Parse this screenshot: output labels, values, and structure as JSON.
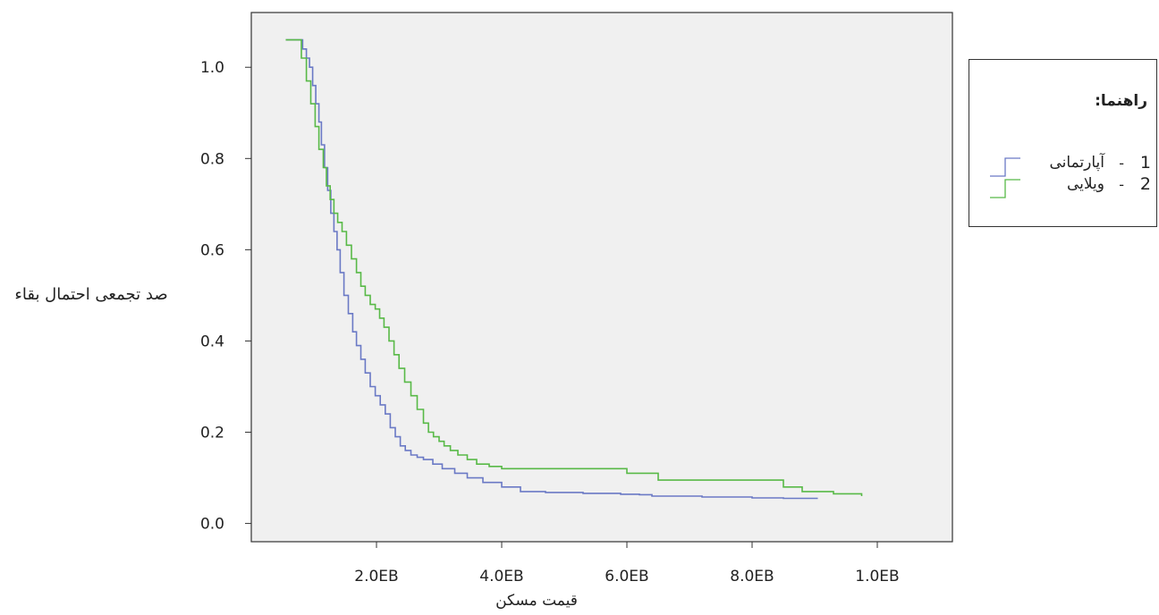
{
  "chart_data": {
    "type": "line",
    "step": true,
    "xlabel": "قیمت مسکن",
    "ylabel": "صد تجمعی احتمال بقاء",
    "xlim": [
      0.0,
      1.12
    ],
    "ylim": [
      -0.04,
      1.12
    ],
    "x_ticks": [
      {
        "value": 0.2,
        "label": "2.0EB"
      },
      {
        "value": 0.4,
        "label": "4.0EB"
      },
      {
        "value": 0.6,
        "label": "6.0EB"
      },
      {
        "value": 0.8,
        "label": "8.0EB"
      },
      {
        "value": 1.0,
        "label": "1.0EB"
      }
    ],
    "y_ticks": [
      {
        "value": 0.0,
        "label": "0.0"
      },
      {
        "value": 0.2,
        "label": "0.2"
      },
      {
        "value": 0.4,
        "label": "0.4"
      },
      {
        "value": 0.6,
        "label": "0.6"
      },
      {
        "value": 0.8,
        "label": "0.8"
      },
      {
        "value": 1.0,
        "label": "1.0"
      }
    ],
    "grid": false,
    "legend_position": "right",
    "series": [
      {
        "name": "آپارتمانی",
        "color": "#6a79c5",
        "x": [
          0.055,
          0.075,
          0.082,
          0.088,
          0.093,
          0.098,
          0.103,
          0.108,
          0.112,
          0.117,
          0.122,
          0.127,
          0.132,
          0.137,
          0.142,
          0.148,
          0.155,
          0.162,
          0.168,
          0.175,
          0.182,
          0.19,
          0.198,
          0.206,
          0.214,
          0.222,
          0.23,
          0.238,
          0.246,
          0.255,
          0.265,
          0.275,
          0.29,
          0.305,
          0.325,
          0.345,
          0.37,
          0.4,
          0.43,
          0.47,
          0.53,
          0.59,
          0.62,
          0.64,
          0.72,
          0.8,
          0.85,
          0.905
        ],
        "y": [
          1.06,
          1.06,
          1.04,
          1.02,
          1.0,
          0.96,
          0.92,
          0.88,
          0.83,
          0.78,
          0.73,
          0.68,
          0.64,
          0.6,
          0.55,
          0.5,
          0.46,
          0.42,
          0.39,
          0.36,
          0.33,
          0.3,
          0.28,
          0.26,
          0.24,
          0.21,
          0.19,
          0.17,
          0.16,
          0.15,
          0.145,
          0.14,
          0.13,
          0.12,
          0.11,
          0.1,
          0.09,
          0.08,
          0.07,
          0.068,
          0.066,
          0.064,
          0.063,
          0.06,
          0.058,
          0.056,
          0.055,
          0.055
        ]
      },
      {
        "name": "ویلایی",
        "color": "#58b947",
        "x": [
          0.055,
          0.072,
          0.08,
          0.088,
          0.095,
          0.102,
          0.108,
          0.115,
          0.12,
          0.126,
          0.132,
          0.138,
          0.145,
          0.152,
          0.16,
          0.168,
          0.175,
          0.182,
          0.19,
          0.198,
          0.205,
          0.212,
          0.22,
          0.228,
          0.236,
          0.245,
          0.255,
          0.265,
          0.275,
          0.283,
          0.291,
          0.3,
          0.308,
          0.318,
          0.33,
          0.345,
          0.36,
          0.38,
          0.4,
          0.45,
          0.5,
          0.55,
          0.6,
          0.65,
          0.7,
          0.75,
          0.8,
          0.85,
          0.88,
          0.93,
          0.975
        ],
        "y": [
          1.06,
          1.06,
          1.02,
          0.97,
          0.92,
          0.87,
          0.82,
          0.78,
          0.74,
          0.71,
          0.68,
          0.66,
          0.64,
          0.61,
          0.58,
          0.55,
          0.52,
          0.5,
          0.48,
          0.47,
          0.45,
          0.43,
          0.4,
          0.37,
          0.34,
          0.31,
          0.28,
          0.25,
          0.22,
          0.2,
          0.19,
          0.18,
          0.17,
          0.16,
          0.15,
          0.14,
          0.13,
          0.125,
          0.12,
          0.12,
          0.12,
          0.12,
          0.11,
          0.095,
          0.095,
          0.095,
          0.095,
          0.08,
          0.07,
          0.065,
          0.06
        ]
      }
    ]
  },
  "legend": {
    "title": "راهنما:",
    "items": [
      {
        "number": "1",
        "label": "آپارتمانی"
      },
      {
        "number": "2",
        "label": "ویلایی"
      }
    ]
  }
}
